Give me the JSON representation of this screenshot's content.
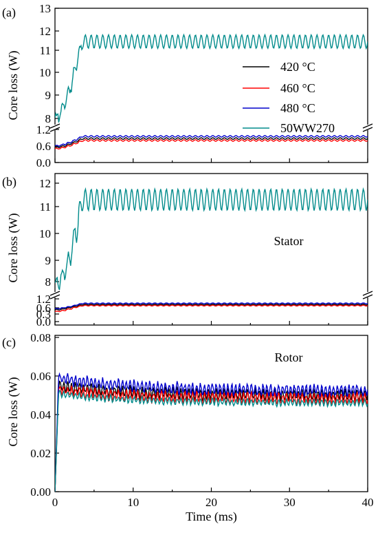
{
  "chart_data": [
    {
      "type": "line",
      "panel_label": "(a)",
      "ylabel": "Core loss (W)",
      "xlim": [
        0,
        40
      ],
      "y_axis_break": true,
      "ylim_lower": [
        0.0,
        1.2
      ],
      "ylim_upper": [
        8,
        13
      ],
      "ytick_labels": [
        "0.0",
        "0.6",
        "1.2",
        "8",
        "9",
        "10",
        "11",
        "12",
        "13"
      ],
      "grid": false,
      "legend": {
        "placement": "center-right",
        "entries": [
          "420 °C",
          "460 °C",
          "480 °C",
          "50WW270"
        ]
      },
      "series": [
        {
          "name": "420 °C",
          "color": "#000000",
          "steady_mean": 0.87,
          "steady_amplitude": 0.03,
          "initial": 0.55,
          "rise_end_ms": 3.5,
          "oscillations": 54
        },
        {
          "name": "460 °C",
          "color": "#ff0000",
          "steady_mean": 0.8,
          "steady_amplitude": 0.03,
          "initial": 0.5,
          "rise_end_ms": 3.5,
          "oscillations": 54
        },
        {
          "name": "480 °C",
          "color": "#0000cc",
          "steady_mean": 0.95,
          "steady_amplitude": 0.03,
          "initial": 0.6,
          "rise_end_ms": 3.5,
          "oscillations": 54
        },
        {
          "name": "50WW270",
          "color": "#008b8b",
          "steady_mean": 11.45,
          "steady_amplitude": 0.35,
          "initial": 8.0,
          "rise_end_ms": 3.5,
          "oscillations": 54
        }
      ]
    },
    {
      "type": "line",
      "panel_label": "(b)",
      "annotation": "Stator",
      "ylabel": "Core loss (W)",
      "xlim": [
        0,
        40
      ],
      "y_axis_break": true,
      "ylim_lower": [
        0.0,
        1.2
      ],
      "ylim_upper": [
        7.6,
        12.4
      ],
      "ytick_labels": [
        "0.0",
        "0.3",
        "0.6",
        "1.2",
        "8",
        "9",
        "10",
        "11",
        "12"
      ],
      "grid": false,
      "series": [
        {
          "name": "420 °C",
          "color": "#000000",
          "steady_mean": 0.82,
          "steady_amplitude": 0.03,
          "initial": 0.5,
          "rise_end_ms": 3.5,
          "oscillations": 54
        },
        {
          "name": "460 °C",
          "color": "#ff0000",
          "steady_mean": 0.75,
          "steady_amplitude": 0.03,
          "initial": 0.42,
          "rise_end_ms": 3.5,
          "oscillations": 54
        },
        {
          "name": "480 °C",
          "color": "#0000cc",
          "steady_mean": 0.9,
          "steady_amplitude": 0.03,
          "initial": 0.55,
          "rise_end_ms": 3.5,
          "oscillations": 54
        },
        {
          "name": "50WW270",
          "color": "#008b8b",
          "steady_mean": 11.3,
          "steady_amplitude": 0.45,
          "initial": 7.8,
          "rise_end_ms": 3.5,
          "oscillations": 54
        }
      ]
    },
    {
      "type": "line",
      "panel_label": "(c)",
      "annotation": "Rotor",
      "xlabel": "Time (ms)",
      "ylabel": "Core loss (W)",
      "xlim": [
        0,
        40
      ],
      "ylim": [
        0.0,
        0.08
      ],
      "xticks": [
        0,
        10,
        20,
        30,
        40
      ],
      "ytick_labels": [
        "0.00",
        "0.02",
        "0.04",
        "0.06",
        "0.08"
      ],
      "grid": false,
      "series": [
        {
          "name": "420 °C",
          "color": "#000000",
          "peak": 0.054,
          "steady_mean": 0.05,
          "steady_amplitude": 0.0025,
          "oscillations": 80
        },
        {
          "name": "460 °C",
          "color": "#ff0000",
          "peak": 0.052,
          "steady_mean": 0.048,
          "steady_amplitude": 0.0025,
          "oscillations": 80
        },
        {
          "name": "480 °C",
          "color": "#0000cc",
          "peak": 0.058,
          "steady_mean": 0.0525,
          "steady_amplitude": 0.0025,
          "oscillations": 80
        },
        {
          "name": "50WW270",
          "color": "#008b8b",
          "peak": 0.05,
          "steady_mean": 0.046,
          "steady_amplitude": 0.0015,
          "oscillations": 80
        }
      ]
    }
  ]
}
